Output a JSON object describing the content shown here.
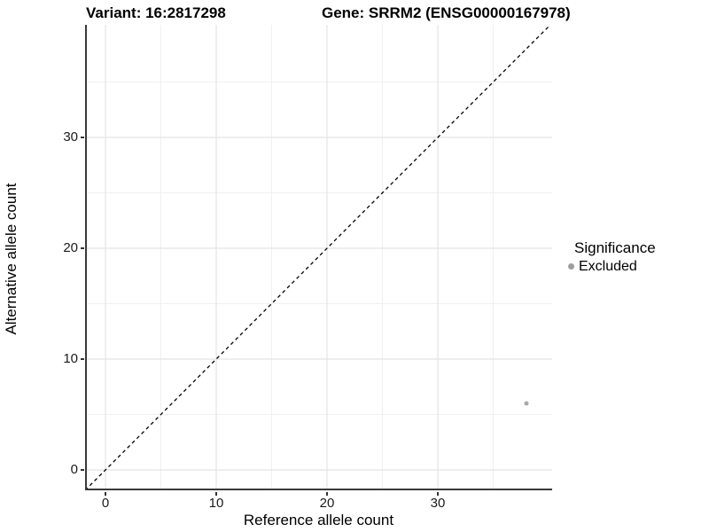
{
  "header": {
    "left_title": "Variant: 16:2817298",
    "right_title": "Gene: SRRM2 (ENSG00000167978)"
  },
  "chart_data": {
    "type": "scatter",
    "title_left": "Variant: 16:2817298",
    "title_right": "Gene: SRRM2 (ENSG00000167978)",
    "xlabel": "Reference allele count",
    "ylabel": "Alternative allele count",
    "xlim": [
      -1.84,
      40.32
    ],
    "ylim": [
      -1.84,
      40.16
    ],
    "x_major_ticks": [
      0,
      10,
      20,
      30
    ],
    "y_major_ticks": [
      0,
      10,
      20,
      30
    ],
    "x_minor_ticks": [
      5,
      15,
      25,
      35
    ],
    "y_minor_ticks": [
      5,
      15,
      25,
      35
    ],
    "grid": "on",
    "identity_line": {
      "style": "dashed",
      "slope": 1,
      "intercept": 0,
      "color": "#000000"
    },
    "points": [
      {
        "x": 38,
        "y": 6,
        "significance": "Excluded"
      }
    ],
    "point_color": "#a8a8a8",
    "legend": {
      "position": "right",
      "title": "Significance",
      "items": [
        {
          "label": "Excluded",
          "color": "#9e9e9e"
        }
      ]
    },
    "colors": {
      "major_grid": "#e4e4e4",
      "minor_grid": "#f0f0f0",
      "axis_line": "#3a3a3a"
    }
  }
}
